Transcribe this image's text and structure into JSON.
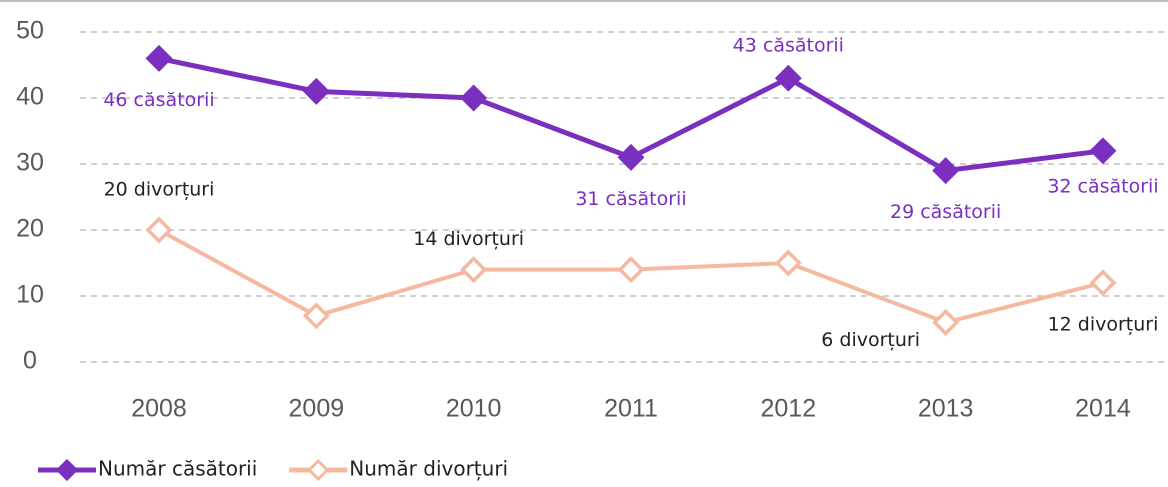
{
  "chart_data": {
    "type": "line",
    "categories": [
      "2008",
      "2009",
      "2010",
      "2011",
      "2012",
      "2013",
      "2014"
    ],
    "series": [
      {
        "name": "Număr căsătorii",
        "color": "#7b2fbe",
        "values": [
          46,
          41,
          40,
          31,
          43,
          29,
          32
        ],
        "value_labels": [
          "46 căsătorii",
          null,
          null,
          "31 căsătorii",
          "43 căsătorii",
          "29 căsătorii",
          "32 căsătorii"
        ]
      },
      {
        "name": "Număr divorțuri",
        "color": "#f4b9a0",
        "values": [
          20,
          7,
          14,
          14,
          15,
          6,
          12
        ],
        "value_labels": [
          "20 divorțuri",
          null,
          "14 divorțuri",
          null,
          null,
          "6 divorțuri",
          "12 divorțuri"
        ]
      }
    ],
    "ylim": [
      0,
      50
    ],
    "yticks": [
      0,
      10,
      20,
      30,
      40,
      50
    ],
    "grid": true,
    "legend": "bottom-left"
  }
}
